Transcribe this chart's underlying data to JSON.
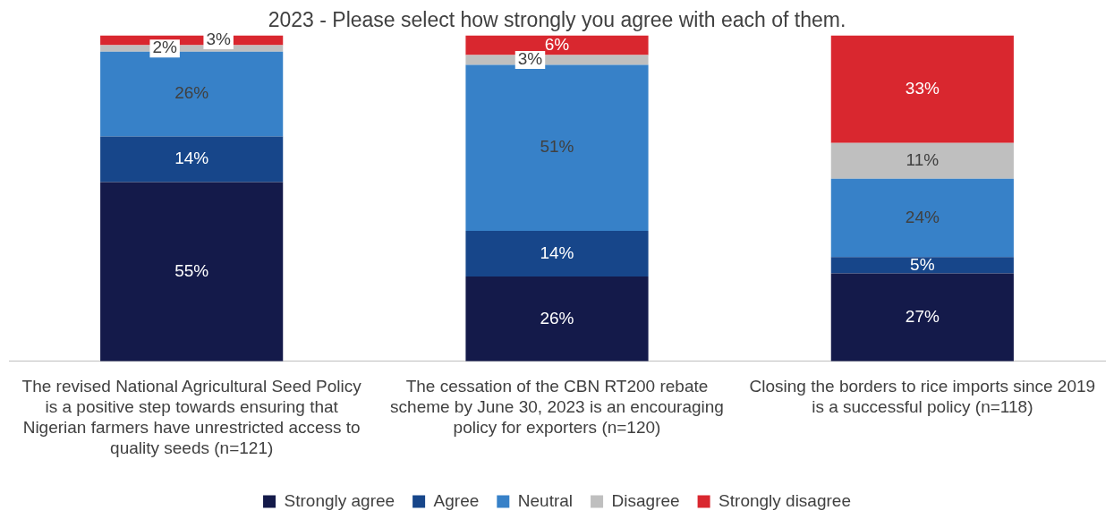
{
  "chart_data": {
    "type": "bar",
    "stacked": true,
    "title": "2023 - Please select how strongly you agree with each of them.",
    "categories": [
      "The revised National Agricultural Seed Policy is a positive step towards ensuring that Nigerian farmers have unrestricted access to quality seeds (n=121)",
      "The cessation of the CBN RT200 rebate scheme by June 30, 2023 is an encouraging policy for exporters (n=120)",
      "Closing the borders to rice imports since 2019 is a successful policy (n=118)"
    ],
    "series": [
      {
        "name": "Strongly agree",
        "color": "#141a4a",
        "values": [
          55,
          26,
          27
        ],
        "value_labels": [
          "55%",
          "26%",
          "27%"
        ]
      },
      {
        "name": "Agree",
        "color": "#17468a",
        "values": [
          14,
          14,
          5
        ],
        "value_labels": [
          "14%",
          "14%",
          "5%"
        ]
      },
      {
        "name": "Neutral",
        "color": "#3781c8",
        "values": [
          26,
          51,
          24
        ],
        "value_labels": [
          "26%",
          "51%",
          "24%"
        ]
      },
      {
        "name": "Disagree",
        "color": "#bfbfbf",
        "values": [
          2,
          3,
          11
        ],
        "value_labels": [
          "2%",
          "3%",
          "11%"
        ]
      },
      {
        "name": "Strongly disagree",
        "color": "#d9272f",
        "values": [
          3,
          6,
          33
        ],
        "value_labels": [
          "3%",
          "6%",
          "33%"
        ]
      }
    ],
    "legend": "bottom",
    "grid": false
  }
}
